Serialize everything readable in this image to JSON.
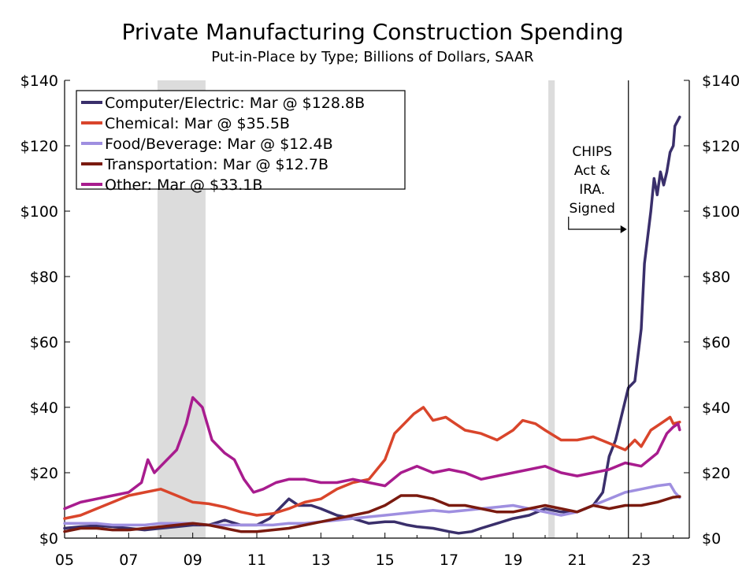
{
  "chart_data": {
    "type": "line",
    "title": "Private Manufacturing Construction Spending",
    "subtitle": "Put-in-Place by Type; Billions of Dollars, SAAR",
    "xlabel": "",
    "ylabel": "",
    "xlim": [
      2005,
      2024.5
    ],
    "ylim": [
      0,
      140
    ],
    "x_ticks": [
      {
        "value": 2005,
        "label": "05"
      },
      {
        "value": 2007,
        "label": "07"
      },
      {
        "value": 2009,
        "label": "09"
      },
      {
        "value": 2011,
        "label": "11"
      },
      {
        "value": 2013,
        "label": "13"
      },
      {
        "value": 2015,
        "label": "15"
      },
      {
        "value": 2017,
        "label": "17"
      },
      {
        "value": 2019,
        "label": "19"
      },
      {
        "value": 2021,
        "label": "21"
      },
      {
        "value": 2023,
        "label": "23"
      }
    ],
    "y_ticks": [
      {
        "value": 0,
        "label": "$0"
      },
      {
        "value": 20,
        "label": "$20"
      },
      {
        "value": 40,
        "label": "$40"
      },
      {
        "value": 60,
        "label": "$60"
      },
      {
        "value": 80,
        "label": "$80"
      },
      {
        "value": 100,
        "label": "$100"
      },
      {
        "value": 120,
        "label": "$120"
      },
      {
        "value": 140,
        "label": "$140"
      }
    ],
    "grid": false,
    "legend_position": "top-left",
    "recessions": [
      {
        "start": 2007.9,
        "end": 2009.4
      },
      {
        "start": 2020.1,
        "end": 2020.3
      }
    ],
    "annotation": {
      "text_lines": [
        "CHIPS",
        "Act &",
        "IRA.",
        "Signed"
      ],
      "arrow_direction": "right",
      "vline_x": 2022.6
    },
    "series": [
      {
        "name": "Computer/Electric: Mar @ $128.8B",
        "color": "#3a2f6b",
        "points": [
          [
            2005.0,
            3
          ],
          [
            2005.5,
            3.5
          ],
          [
            2006.0,
            3.8
          ],
          [
            2006.5,
            3.5
          ],
          [
            2007.0,
            3
          ],
          [
            2007.5,
            2.5
          ],
          [
            2008.0,
            3
          ],
          [
            2008.5,
            3.5
          ],
          [
            2009.0,
            4
          ],
          [
            2009.5,
            4
          ],
          [
            2010.0,
            5.5
          ],
          [
            2010.5,
            4
          ],
          [
            2011.0,
            4
          ],
          [
            2011.4,
            6
          ],
          [
            2011.7,
            9
          ],
          [
            2012.0,
            12
          ],
          [
            2012.3,
            10
          ],
          [
            2012.7,
            10
          ],
          [
            2013.0,
            9
          ],
          [
            2013.5,
            7
          ],
          [
            2014.0,
            6
          ],
          [
            2014.5,
            4.5
          ],
          [
            2015.0,
            5
          ],
          [
            2015.3,
            5
          ],
          [
            2015.7,
            4
          ],
          [
            2016.0,
            3.5
          ],
          [
            2016.5,
            3
          ],
          [
            2017.0,
            2
          ],
          [
            2017.3,
            1.5
          ],
          [
            2017.7,
            2
          ],
          [
            2018.0,
            3
          ],
          [
            2018.5,
            4.5
          ],
          [
            2019.0,
            6
          ],
          [
            2019.5,
            7
          ],
          [
            2020.0,
            9
          ],
          [
            2020.5,
            8
          ],
          [
            2021.0,
            8
          ],
          [
            2021.5,
            10
          ],
          [
            2021.8,
            14
          ],
          [
            2022.0,
            25
          ],
          [
            2022.2,
            30
          ],
          [
            2022.4,
            38
          ],
          [
            2022.6,
            46
          ],
          [
            2022.8,
            48
          ],
          [
            2023.0,
            64
          ],
          [
            2023.1,
            84
          ],
          [
            2023.3,
            100
          ],
          [
            2023.4,
            110
          ],
          [
            2023.5,
            105
          ],
          [
            2023.6,
            112
          ],
          [
            2023.7,
            108
          ],
          [
            2023.8,
            112
          ],
          [
            2023.9,
            118
          ],
          [
            2024.0,
            120
          ],
          [
            2024.05,
            126
          ],
          [
            2024.2,
            128.8
          ]
        ]
      },
      {
        "name": "Chemical: Mar @ $35.5B",
        "color": "#d9452b",
        "points": [
          [
            2005.0,
            6
          ],
          [
            2005.5,
            7
          ],
          [
            2006.0,
            9
          ],
          [
            2006.5,
            11
          ],
          [
            2007.0,
            13
          ],
          [
            2007.5,
            14
          ],
          [
            2008.0,
            15
          ],
          [
            2008.5,
            13
          ],
          [
            2009.0,
            11
          ],
          [
            2009.5,
            10.5
          ],
          [
            2010.0,
            9.5
          ],
          [
            2010.5,
            8
          ],
          [
            2011.0,
            7
          ],
          [
            2011.5,
            7.5
          ],
          [
            2012.0,
            9
          ],
          [
            2012.5,
            11
          ],
          [
            2013.0,
            12
          ],
          [
            2013.5,
            15
          ],
          [
            2014.0,
            17
          ],
          [
            2014.5,
            18
          ],
          [
            2015.0,
            24
          ],
          [
            2015.3,
            32
          ],
          [
            2015.6,
            35
          ],
          [
            2015.9,
            38
          ],
          [
            2016.2,
            40
          ],
          [
            2016.5,
            36
          ],
          [
            2016.9,
            37
          ],
          [
            2017.2,
            35
          ],
          [
            2017.5,
            33
          ],
          [
            2018.0,
            32
          ],
          [
            2018.5,
            30
          ],
          [
            2019.0,
            33
          ],
          [
            2019.3,
            36
          ],
          [
            2019.7,
            35
          ],
          [
            2020.0,
            33
          ],
          [
            2020.5,
            30
          ],
          [
            2021.0,
            30
          ],
          [
            2021.5,
            31
          ],
          [
            2022.0,
            29
          ],
          [
            2022.5,
            27
          ],
          [
            2022.8,
            30
          ],
          [
            2023.0,
            28
          ],
          [
            2023.3,
            33
          ],
          [
            2023.6,
            35
          ],
          [
            2023.9,
            37
          ],
          [
            2024.0,
            35
          ],
          [
            2024.2,
            35.5
          ]
        ]
      },
      {
        "name": "Food/Beverage: Mar @ $12.4B",
        "color": "#9f8fe0",
        "points": [
          [
            2005.0,
            4.5
          ],
          [
            2005.5,
            4.5
          ],
          [
            2006.0,
            4.5
          ],
          [
            2006.5,
            4
          ],
          [
            2007.0,
            4
          ],
          [
            2007.5,
            4
          ],
          [
            2008.0,
            4.5
          ],
          [
            2008.5,
            4.5
          ],
          [
            2009.0,
            4.5
          ],
          [
            2009.5,
            4
          ],
          [
            2010.0,
            4
          ],
          [
            2010.5,
            4
          ],
          [
            2011.0,
            4
          ],
          [
            2011.5,
            4
          ],
          [
            2012.0,
            4.5
          ],
          [
            2012.5,
            4.5
          ],
          [
            2013.0,
            5
          ],
          [
            2013.5,
            5.5
          ],
          [
            2014.0,
            6
          ],
          [
            2014.5,
            6.5
          ],
          [
            2015.0,
            7
          ],
          [
            2015.5,
            7.5
          ],
          [
            2016.0,
            8
          ],
          [
            2016.5,
            8.5
          ],
          [
            2017.0,
            8
          ],
          [
            2017.5,
            8.5
          ],
          [
            2018.0,
            9
          ],
          [
            2018.5,
            9.5
          ],
          [
            2019.0,
            10
          ],
          [
            2019.5,
            9
          ],
          [
            2020.0,
            8
          ],
          [
            2020.5,
            7
          ],
          [
            2021.0,
            8
          ],
          [
            2021.5,
            10
          ],
          [
            2022.0,
            12
          ],
          [
            2022.5,
            14
          ],
          [
            2023.0,
            15
          ],
          [
            2023.5,
            16
          ],
          [
            2023.9,
            16.5
          ],
          [
            2024.05,
            14
          ],
          [
            2024.2,
            12.4
          ]
        ]
      },
      {
        "name": "Transportation: Mar @ $12.7B",
        "color": "#7a1a0f",
        "points": [
          [
            2005.0,
            2
          ],
          [
            2005.5,
            3
          ],
          [
            2006.0,
            3
          ],
          [
            2006.5,
            2.5
          ],
          [
            2007.0,
            2.5
          ],
          [
            2007.5,
            3
          ],
          [
            2008.0,
            3.5
          ],
          [
            2008.5,
            4
          ],
          [
            2009.0,
            4.5
          ],
          [
            2009.5,
            4
          ],
          [
            2010.0,
            3
          ],
          [
            2010.5,
            2
          ],
          [
            2011.0,
            2
          ],
          [
            2011.5,
            2.5
          ],
          [
            2012.0,
            3
          ],
          [
            2012.5,
            4
          ],
          [
            2013.0,
            5
          ],
          [
            2013.5,
            6
          ],
          [
            2014.0,
            7
          ],
          [
            2014.5,
            8
          ],
          [
            2015.0,
            10
          ],
          [
            2015.5,
            13
          ],
          [
            2016.0,
            13
          ],
          [
            2016.5,
            12
          ],
          [
            2017.0,
            10
          ],
          [
            2017.5,
            10
          ],
          [
            2018.0,
            9
          ],
          [
            2018.5,
            8
          ],
          [
            2019.0,
            8
          ],
          [
            2019.5,
            9
          ],
          [
            2020.0,
            10
          ],
          [
            2020.5,
            9
          ],
          [
            2021.0,
            8
          ],
          [
            2021.5,
            10
          ],
          [
            2022.0,
            9
          ],
          [
            2022.5,
            10
          ],
          [
            2023.0,
            10
          ],
          [
            2023.5,
            11
          ],
          [
            2024.0,
            12.5
          ],
          [
            2024.2,
            12.7
          ]
        ]
      },
      {
        "name": "Other: Mar @ $33.1B",
        "color": "#a81c8e",
        "points": [
          [
            2005.0,
            9
          ],
          [
            2005.5,
            11
          ],
          [
            2006.0,
            12
          ],
          [
            2006.5,
            13
          ],
          [
            2007.0,
            14
          ],
          [
            2007.4,
            17
          ],
          [
            2007.6,
            24
          ],
          [
            2007.8,
            20
          ],
          [
            2008.0,
            22
          ],
          [
            2008.5,
            27
          ],
          [
            2008.8,
            35
          ],
          [
            2009.0,
            43
          ],
          [
            2009.3,
            40
          ],
          [
            2009.6,
            30
          ],
          [
            2010.0,
            26
          ],
          [
            2010.3,
            24
          ],
          [
            2010.6,
            18
          ],
          [
            2010.9,
            14
          ],
          [
            2011.2,
            15
          ],
          [
            2011.6,
            17
          ],
          [
            2012.0,
            18
          ],
          [
            2012.5,
            18
          ],
          [
            2013.0,
            17
          ],
          [
            2013.5,
            17
          ],
          [
            2014.0,
            18
          ],
          [
            2014.5,
            17
          ],
          [
            2015.0,
            16
          ],
          [
            2015.5,
            20
          ],
          [
            2016.0,
            22
          ],
          [
            2016.5,
            20
          ],
          [
            2017.0,
            21
          ],
          [
            2017.5,
            20
          ],
          [
            2018.0,
            18
          ],
          [
            2018.5,
            19
          ],
          [
            2019.0,
            20
          ],
          [
            2019.5,
            21
          ],
          [
            2020.0,
            22
          ],
          [
            2020.5,
            20
          ],
          [
            2021.0,
            19
          ],
          [
            2021.5,
            20
          ],
          [
            2022.0,
            21
          ],
          [
            2022.5,
            23
          ],
          [
            2023.0,
            22
          ],
          [
            2023.5,
            26
          ],
          [
            2023.8,
            32
          ],
          [
            2024.0,
            34
          ],
          [
            2024.15,
            35
          ],
          [
            2024.2,
            33.1
          ]
        ]
      }
    ]
  }
}
